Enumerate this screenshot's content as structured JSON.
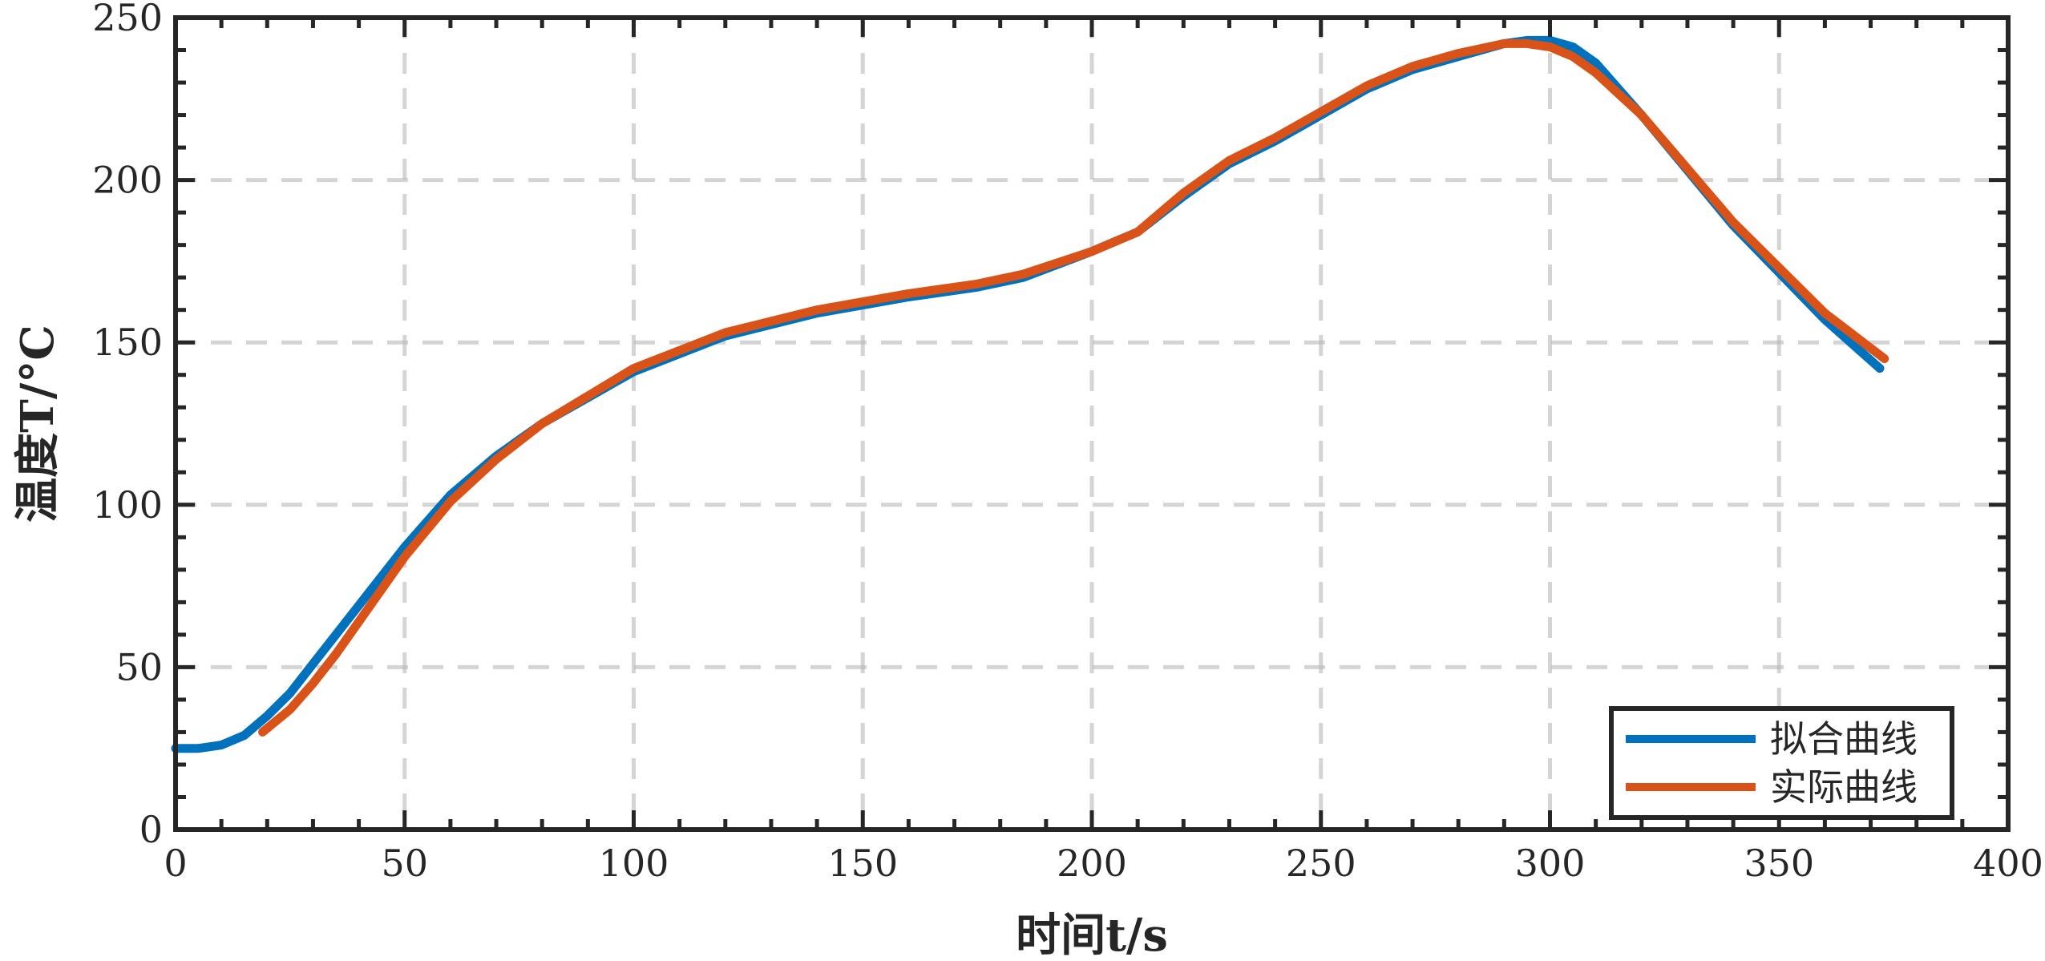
{
  "chart_data": {
    "type": "line",
    "xlabel": "时间t/s",
    "ylabel": "温度T/°C",
    "xlim": [
      0,
      400
    ],
    "ylim": [
      0,
      250
    ],
    "xticks": [
      "0",
      "50",
      "100",
      "150",
      "200",
      "250",
      "300",
      "350",
      "400"
    ],
    "yticks": [
      "0",
      "50",
      "100",
      "150",
      "200",
      "250"
    ],
    "grid": true,
    "legend_position": "bottom-right",
    "series": [
      {
        "name": "拟合曲线",
        "color": "#0072BD",
        "x": [
          0,
          5,
          10,
          15,
          20,
          25,
          30,
          35,
          40,
          50,
          60,
          70,
          80,
          100,
          120,
          140,
          160,
          175,
          185,
          200,
          210,
          220,
          230,
          240,
          250,
          260,
          270,
          280,
          290,
          295,
          300,
          305,
          310,
          320,
          340,
          360,
          372
        ],
        "y": [
          25,
          25,
          26,
          29,
          35,
          42,
          51,
          60,
          69,
          87,
          103,
          115,
          125,
          141,
          152,
          159,
          164,
          167,
          170,
          178,
          184,
          195,
          205,
          212,
          220,
          228,
          234,
          238,
          242,
          243,
          243,
          241,
          236,
          220,
          186,
          157,
          142
        ]
      },
      {
        "name": "实际曲线",
        "color": "#D95319",
        "x": [
          19,
          25,
          30,
          35,
          40,
          50,
          60,
          70,
          80,
          100,
          120,
          140,
          160,
          175,
          185,
          200,
          210,
          220,
          230,
          240,
          250,
          260,
          270,
          280,
          290,
          295,
          300,
          305,
          310,
          320,
          340,
          360,
          373
        ],
        "y": [
          30,
          37,
          45,
          54,
          64,
          84,
          101,
          114,
          125,
          142,
          153,
          160,
          165,
          168,
          171,
          178,
          184,
          196,
          206,
          213,
          221,
          229,
          235,
          239,
          242,
          242,
          241,
          238,
          233,
          220,
          187,
          159,
          145
        ]
      }
    ]
  }
}
